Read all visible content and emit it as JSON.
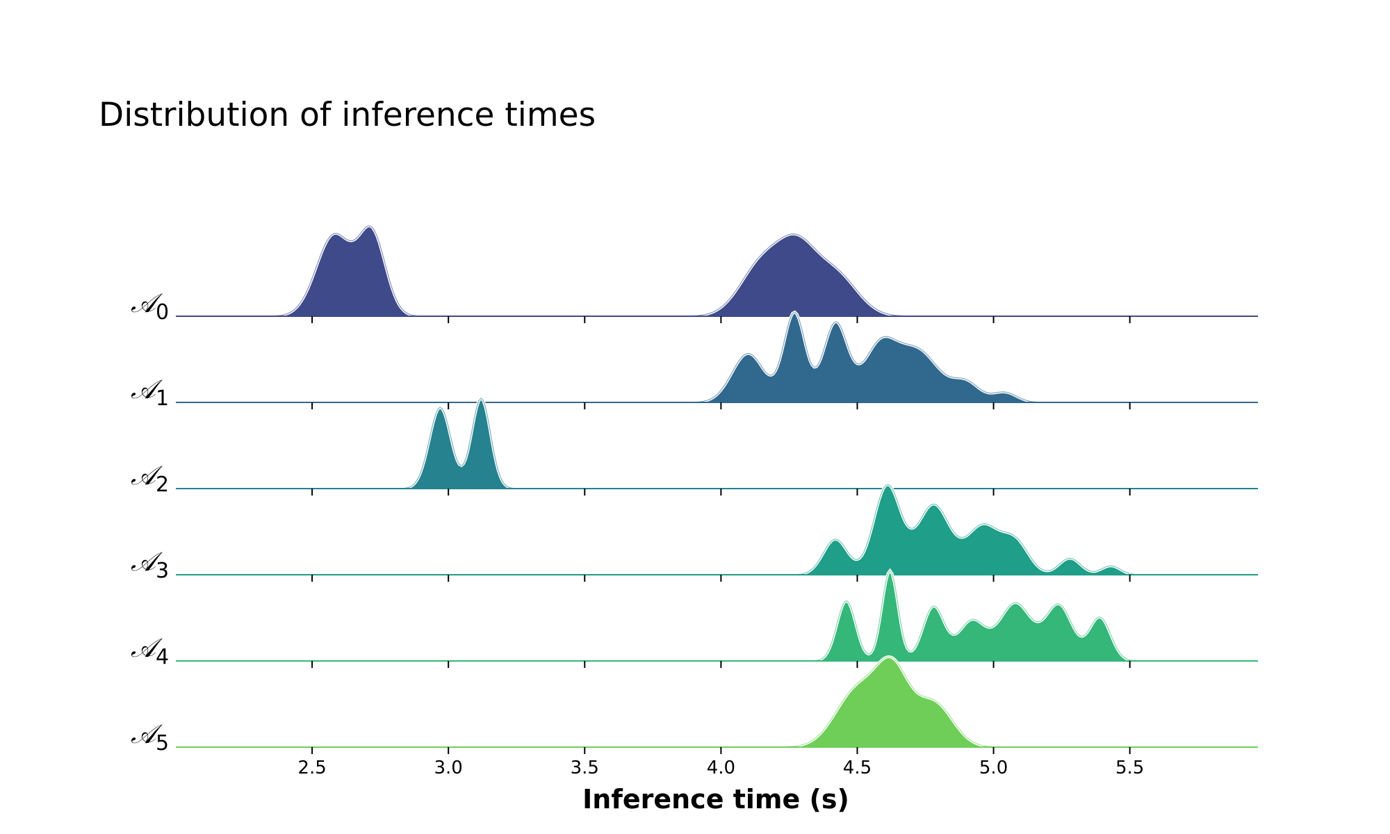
{
  "chart_data": {
    "type": "ridgeline",
    "title": "Distribution of inference times",
    "xlabel": "Inference time (s)",
    "ylabel": "",
    "xlim": [
      2.0,
      5.97
    ],
    "xticks": [
      2.5,
      3.0,
      3.5,
      4.0,
      4.5,
      5.0,
      5.5
    ],
    "xtick_labels": [
      "2.5",
      "3.0",
      "3.5",
      "4.0",
      "4.5",
      "5.0",
      "5.5"
    ],
    "grid": false,
    "series": [
      {
        "name": "A0",
        "label_letter": "𝒜",
        "label_sub": "0",
        "color": "#3e4a89",
        "components": [
          {
            "mu": 2.58,
            "sigma": 0.065,
            "w": 0.55
          },
          {
            "mu": 2.72,
            "sigma": 0.05,
            "w": 0.55
          },
          {
            "mu": 4.15,
            "sigma": 0.08,
            "w": 0.35
          },
          {
            "mu": 4.28,
            "sigma": 0.07,
            "w": 0.4
          },
          {
            "mu": 4.42,
            "sigma": 0.08,
            "w": 0.28
          }
        ]
      },
      {
        "name": "A1",
        "label_letter": "𝒜",
        "label_sub": "1",
        "color": "#31688e",
        "components": [
          {
            "mu": 4.1,
            "sigma": 0.06,
            "w": 0.34
          },
          {
            "mu": 4.27,
            "sigma": 0.04,
            "w": 0.62
          },
          {
            "mu": 4.42,
            "sigma": 0.045,
            "w": 0.55
          },
          {
            "mu": 4.58,
            "sigma": 0.06,
            "w": 0.36
          },
          {
            "mu": 4.72,
            "sigma": 0.08,
            "w": 0.36
          },
          {
            "mu": 4.9,
            "sigma": 0.05,
            "w": 0.13
          },
          {
            "mu": 5.04,
            "sigma": 0.045,
            "w": 0.07
          }
        ]
      },
      {
        "name": "A2",
        "label_letter": "𝒜",
        "label_sub": "2",
        "color": "#26828e",
        "components": [
          {
            "mu": 2.97,
            "sigma": 0.04,
            "w": 0.9
          },
          {
            "mu": 3.12,
            "sigma": 0.035,
            "w": 1.0
          }
        ]
      },
      {
        "name": "A3",
        "label_letter": "𝒜",
        "label_sub": "3",
        "color": "#1f9e89",
        "components": [
          {
            "mu": 4.42,
            "sigma": 0.045,
            "w": 0.28
          },
          {
            "mu": 4.61,
            "sigma": 0.05,
            "w": 0.7
          },
          {
            "mu": 4.78,
            "sigma": 0.06,
            "w": 0.55
          },
          {
            "mu": 4.96,
            "sigma": 0.06,
            "w": 0.38
          },
          {
            "mu": 5.08,
            "sigma": 0.05,
            "w": 0.25
          },
          {
            "mu": 5.28,
            "sigma": 0.04,
            "w": 0.13
          },
          {
            "mu": 5.43,
            "sigma": 0.035,
            "w": 0.07
          }
        ]
      },
      {
        "name": "A4",
        "label_letter": "𝒜",
        "label_sub": "4",
        "color": "#35b779",
        "components": [
          {
            "mu": 4.46,
            "sigma": 0.035,
            "w": 0.5
          },
          {
            "mu": 4.62,
            "sigma": 0.03,
            "w": 0.75
          },
          {
            "mu": 4.78,
            "sigma": 0.04,
            "w": 0.45
          },
          {
            "mu": 4.92,
            "sigma": 0.05,
            "w": 0.33
          },
          {
            "mu": 5.08,
            "sigma": 0.06,
            "w": 0.48
          },
          {
            "mu": 5.24,
            "sigma": 0.05,
            "w": 0.46
          },
          {
            "mu": 5.39,
            "sigma": 0.04,
            "w": 0.36
          }
        ]
      },
      {
        "name": "A5",
        "label_letter": "𝒜",
        "label_sub": "5",
        "color": "#6ece58",
        "components": [
          {
            "mu": 4.5,
            "sigma": 0.08,
            "w": 0.45
          },
          {
            "mu": 4.63,
            "sigma": 0.06,
            "w": 0.55
          },
          {
            "mu": 4.78,
            "sigma": 0.07,
            "w": 0.35
          }
        ]
      }
    ]
  }
}
